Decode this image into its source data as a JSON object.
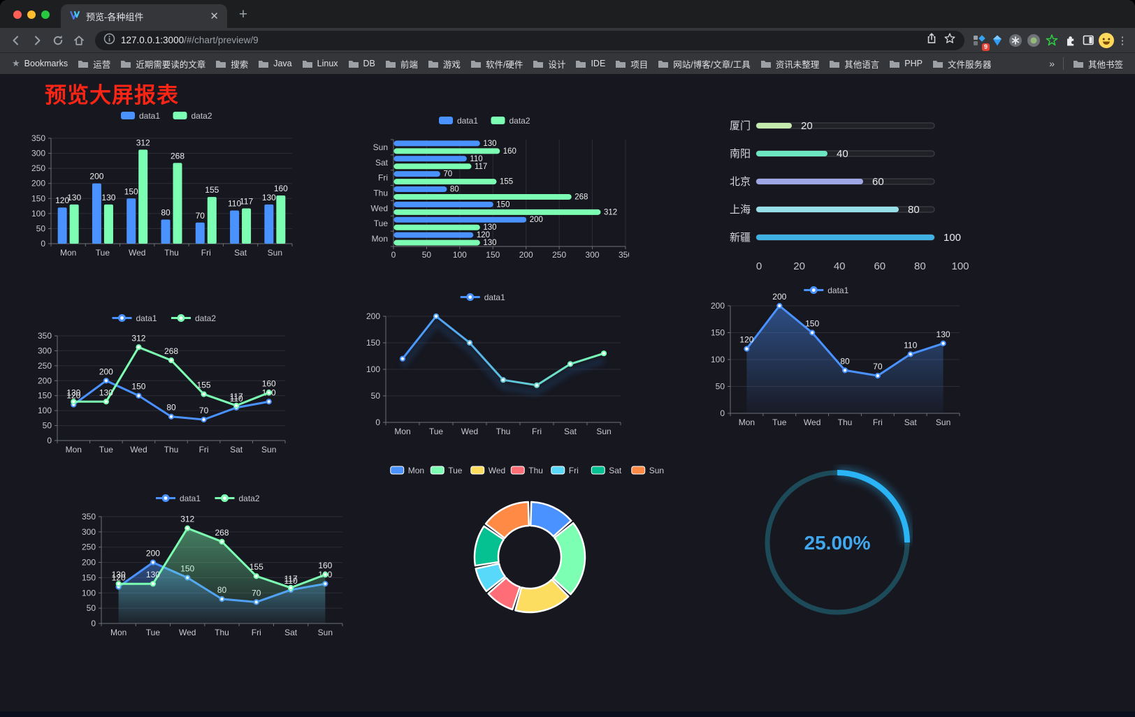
{
  "browser": {
    "tab_title": "预览-各种组件",
    "url_host": "127.0.0.1:3000",
    "url_path": "/#/chart/preview/9",
    "new_tab_label": "+",
    "extension_badge": "9",
    "bookmarks_label": "Bookmarks",
    "bookmarks": [
      "运营",
      "近期需要读的文章",
      "搜索",
      "Java",
      "Linux",
      "DB",
      "前端",
      "游戏",
      "软件/硬件",
      "设计",
      "IDE",
      "项目",
      "网站/博客/文章/工具",
      "资讯未整理",
      "其他语言",
      "PHP",
      "文件服务器"
    ],
    "overflow_chevron": "»",
    "other_bookmarks": "其他书签"
  },
  "page": {
    "title": "预览大屏报表",
    "title_color": "#fb2516",
    "background": "#17171f"
  },
  "chart_data": [
    {
      "type": "bar",
      "categories": [
        "Mon",
        "Tue",
        "Wed",
        "Thu",
        "Fri",
        "Sat",
        "Sun"
      ],
      "series": [
        {
          "name": "data1",
          "color": "#4992ff",
          "values": [
            120,
            200,
            150,
            80,
            70,
            110,
            130
          ]
        },
        {
          "name": "data2",
          "color": "#7cffb2",
          "values": [
            130,
            130,
            312,
            268,
            155,
            117,
            160
          ]
        }
      ],
      "ylim": [
        0,
        350
      ],
      "ytick": 50,
      "labels": true,
      "legend_position": "top"
    },
    {
      "type": "hbar",
      "categories": [
        "Mon",
        "Tue",
        "Wed",
        "Thu",
        "Fri",
        "Sat",
        "Sun"
      ],
      "display_note": "Sun at top, Mon at bottom",
      "series": [
        {
          "name": "data1",
          "color": "#4992ff",
          "values": [
            120,
            200,
            150,
            80,
            70,
            110,
            130
          ]
        },
        {
          "name": "data2",
          "color": "#7cffb2",
          "values": [
            130,
            130,
            312,
            268,
            155,
            117,
            160
          ]
        }
      ],
      "xlim": [
        0,
        350
      ],
      "xtick": 50,
      "labels": true,
      "legend_position": "top"
    },
    {
      "type": "progress",
      "max": 100,
      "axis_ticks": [
        0,
        20,
        40,
        60,
        80,
        100
      ],
      "items": [
        {
          "label": "厦门",
          "value": 20,
          "color": "#c4ebad"
        },
        {
          "label": "南阳",
          "value": 40,
          "color": "#6be6c1"
        },
        {
          "label": "北京",
          "value": 60,
          "color": "#a0a7e6"
        },
        {
          "label": "上海",
          "value": 80,
          "color": "#96dee8"
        },
        {
          "label": "新疆",
          "value": 100,
          "color": "#3fb1e3"
        }
      ]
    },
    {
      "type": "line",
      "categories": [
        "Mon",
        "Tue",
        "Wed",
        "Thu",
        "Fri",
        "Sat",
        "Sun"
      ],
      "series": [
        {
          "name": "data1",
          "color": "#4992ff",
          "values": [
            120,
            200,
            150,
            80,
            70,
            110,
            130
          ]
        },
        {
          "name": "data2",
          "color": "#7cffb2",
          "values": [
            130,
            130,
            312,
            268,
            155,
            117,
            160
          ]
        }
      ],
      "ylim": [
        0,
        350
      ],
      "ytick": 50,
      "labels": true
    },
    {
      "type": "line",
      "categories": [
        "Mon",
        "Tue",
        "Wed",
        "Thu",
        "Fri",
        "Sat",
        "Sun"
      ],
      "series": [
        {
          "name": "data1",
          "color_gradient": [
            "#4992ff",
            "#7cffb2"
          ],
          "values": [
            120,
            200,
            150,
            80,
            70,
            110,
            130
          ],
          "shadow": true
        }
      ],
      "ylim": [
        0,
        200
      ],
      "ytick": 50,
      "labels": false
    },
    {
      "type": "line",
      "categories": [
        "Mon",
        "Tue",
        "Wed",
        "Thu",
        "Fri",
        "Sat",
        "Sun"
      ],
      "series": [
        {
          "name": "data1",
          "color": "#4992ff",
          "values": [
            120,
            200,
            150,
            80,
            70,
            110,
            130
          ],
          "area": true
        }
      ],
      "ylim": [
        0,
        200
      ],
      "ytick": 50,
      "labels": true
    },
    {
      "type": "line",
      "categories": [
        "Mon",
        "Tue",
        "Wed",
        "Thu",
        "Fri",
        "Sat",
        "Sun"
      ],
      "series": [
        {
          "name": "data1",
          "color": "#4992ff",
          "values": [
            120,
            200,
            150,
            80,
            70,
            110,
            130
          ],
          "area": true
        },
        {
          "name": "data2",
          "color": "#7cffb2",
          "values": [
            130,
            130,
            312,
            268,
            155,
            117,
            160
          ],
          "area": true
        }
      ],
      "ylim": [
        0,
        350
      ],
      "ytick": 50,
      "labels": true
    },
    {
      "type": "pie",
      "shape": "donut",
      "items": [
        {
          "label": "Mon",
          "value": 120,
          "color": "#4992ff"
        },
        {
          "label": "Tue",
          "value": 200,
          "color": "#7cffb2"
        },
        {
          "label": "Wed",
          "value": 150,
          "color": "#fddd60"
        },
        {
          "label": "Thu",
          "value": 80,
          "color": "#ff6e76"
        },
        {
          "label": "Fri",
          "value": 70,
          "color": "#58d9f9"
        },
        {
          "label": "Sat",
          "value": 110,
          "color": "#05c091"
        },
        {
          "label": "Sun",
          "value": 130,
          "color": "#ff8a45"
        }
      ]
    },
    {
      "type": "gauge",
      "value_label": "25.00%",
      "percent": 25,
      "color": "#2ab4f5",
      "track_color": "#1d4a58",
      "text_color": "#41a7ee"
    }
  ]
}
